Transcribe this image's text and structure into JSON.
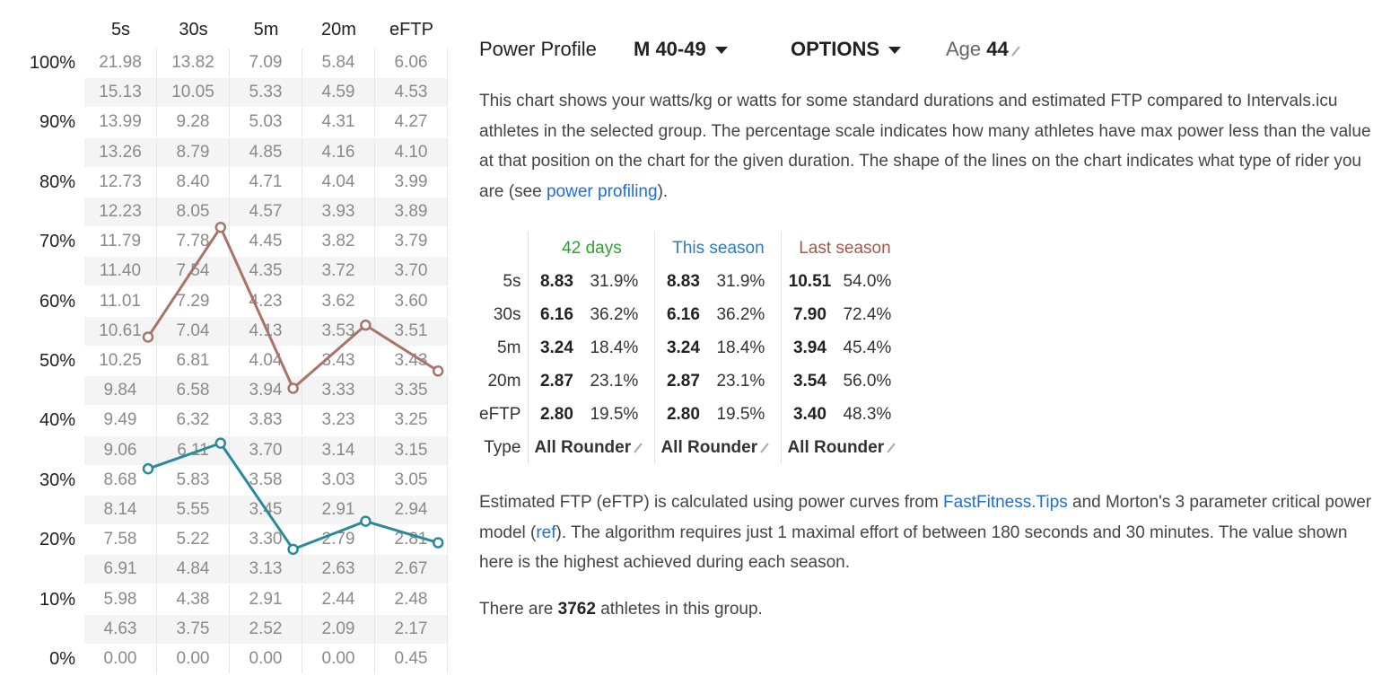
{
  "grid": {
    "columns": [
      "5s",
      "30s",
      "5m",
      "20m",
      "eFTP"
    ],
    "percent_labels": [
      "100%",
      "90%",
      "80%",
      "70%",
      "60%",
      "50%",
      "40%",
      "30%",
      "20%",
      "10%",
      "0%"
    ],
    "rows": [
      [
        "21.98",
        "13.82",
        "7.09",
        "5.84",
        "6.06"
      ],
      [
        "15.13",
        "10.05",
        "5.33",
        "4.59",
        "4.53"
      ],
      [
        "13.99",
        "9.28",
        "5.03",
        "4.31",
        "4.27"
      ],
      [
        "13.26",
        "8.79",
        "4.85",
        "4.16",
        "4.10"
      ],
      [
        "12.73",
        "8.40",
        "4.71",
        "4.04",
        "3.99"
      ],
      [
        "12.23",
        "8.05",
        "4.57",
        "3.93",
        "3.89"
      ],
      [
        "11.79",
        "7.78",
        "4.45",
        "3.82",
        "3.79"
      ],
      [
        "11.40",
        "7.54",
        "4.35",
        "3.72",
        "3.70"
      ],
      [
        "11.01",
        "7.29",
        "4.23",
        "3.62",
        "3.60"
      ],
      [
        "10.61",
        "7.04",
        "4.13",
        "3.53",
        "3.51"
      ],
      [
        "10.25",
        "6.81",
        "4.04",
        "3.43",
        "3.43"
      ],
      [
        "9.84",
        "6.58",
        "3.94",
        "3.33",
        "3.35"
      ],
      [
        "9.49",
        "6.32",
        "3.83",
        "3.23",
        "3.25"
      ],
      [
        "9.06",
        "6.11",
        "3.70",
        "3.14",
        "3.15"
      ],
      [
        "8.68",
        "5.83",
        "3.58",
        "3.03",
        "3.05"
      ],
      [
        "8.14",
        "5.55",
        "3.45",
        "2.91",
        "2.94"
      ],
      [
        "7.58",
        "5.22",
        "3.30",
        "2.79",
        "2.81"
      ],
      [
        "6.91",
        "4.84",
        "3.13",
        "2.63",
        "2.67"
      ],
      [
        "5.98",
        "4.38",
        "2.91",
        "2.44",
        "2.48"
      ],
      [
        "4.63",
        "3.75",
        "2.52",
        "2.09",
        "2.17"
      ],
      [
        "0.00",
        "0.00",
        "0.00",
        "0.00",
        "0.45"
      ]
    ],
    "colors": {
      "last_season": "#a8746a",
      "this_season": "#2a8a9a"
    }
  },
  "chart_data": {
    "type": "line",
    "x": [
      "5s",
      "30s",
      "5m",
      "20m",
      "eFTP"
    ],
    "ylim": [
      0,
      100
    ],
    "series": [
      {
        "name": "Last season",
        "values": [
          54.0,
          72.4,
          45.4,
          56.0,
          48.3
        ]
      },
      {
        "name": "This season",
        "values": [
          31.9,
          36.2,
          18.4,
          23.1,
          19.5
        ]
      }
    ]
  },
  "header": {
    "title": "Power Profile",
    "group_label": "M 40-49",
    "options_label": "OPTIONS",
    "age_label": "Age",
    "age_value": "44"
  },
  "intro": {
    "text": "This chart shows your watts/kg or watts for some standard durations and estimated FTP compared to Intervals.icu athletes in the selected group. The percentage scale indicates how many athletes have max power less than the value at that position on the chart for the given duration. The shape of the lines on the chart indicates what type of rider you are (see ",
    "link_text": "power profiling",
    "after": ")."
  },
  "stats": {
    "headers": [
      "42 days",
      "This season",
      "Last season"
    ],
    "rows": [
      {
        "label": "5s",
        "values": [
          "8.83",
          "31.9%",
          "8.83",
          "31.9%",
          "10.51",
          "54.0%"
        ]
      },
      {
        "label": "30s",
        "values": [
          "6.16",
          "36.2%",
          "6.16",
          "36.2%",
          "7.90",
          "72.4%"
        ]
      },
      {
        "label": "5m",
        "values": [
          "3.24",
          "18.4%",
          "3.24",
          "18.4%",
          "3.94",
          "45.4%"
        ]
      },
      {
        "label": "20m",
        "values": [
          "2.87",
          "23.1%",
          "2.87",
          "23.1%",
          "3.54",
          "56.0%"
        ]
      },
      {
        "label": "eFTP",
        "values": [
          "2.80",
          "19.5%",
          "2.80",
          "19.5%",
          "3.40",
          "48.3%"
        ]
      }
    ],
    "type_label": "Type",
    "types": [
      "All Rounder",
      "All Rounder",
      "All Rounder"
    ],
    "header_colors": [
      "#2ea22e",
      "#2b7bc0",
      "#a05a4a"
    ]
  },
  "eftp_note": {
    "p1": "Estimated FTP (eFTP) is calculated using power curves from ",
    "link1": "FastFitness.Tips",
    "p2": " and Morton's 3 parameter critical power model (",
    "link2": "ref",
    "p3": "). The algorithm requires just 1 maximal effort of between 180 seconds and 30 minutes. The value shown here is the highest achieved during each season."
  },
  "athletes": {
    "before": "There are ",
    "count": "3762",
    "after": " athletes in this group."
  }
}
